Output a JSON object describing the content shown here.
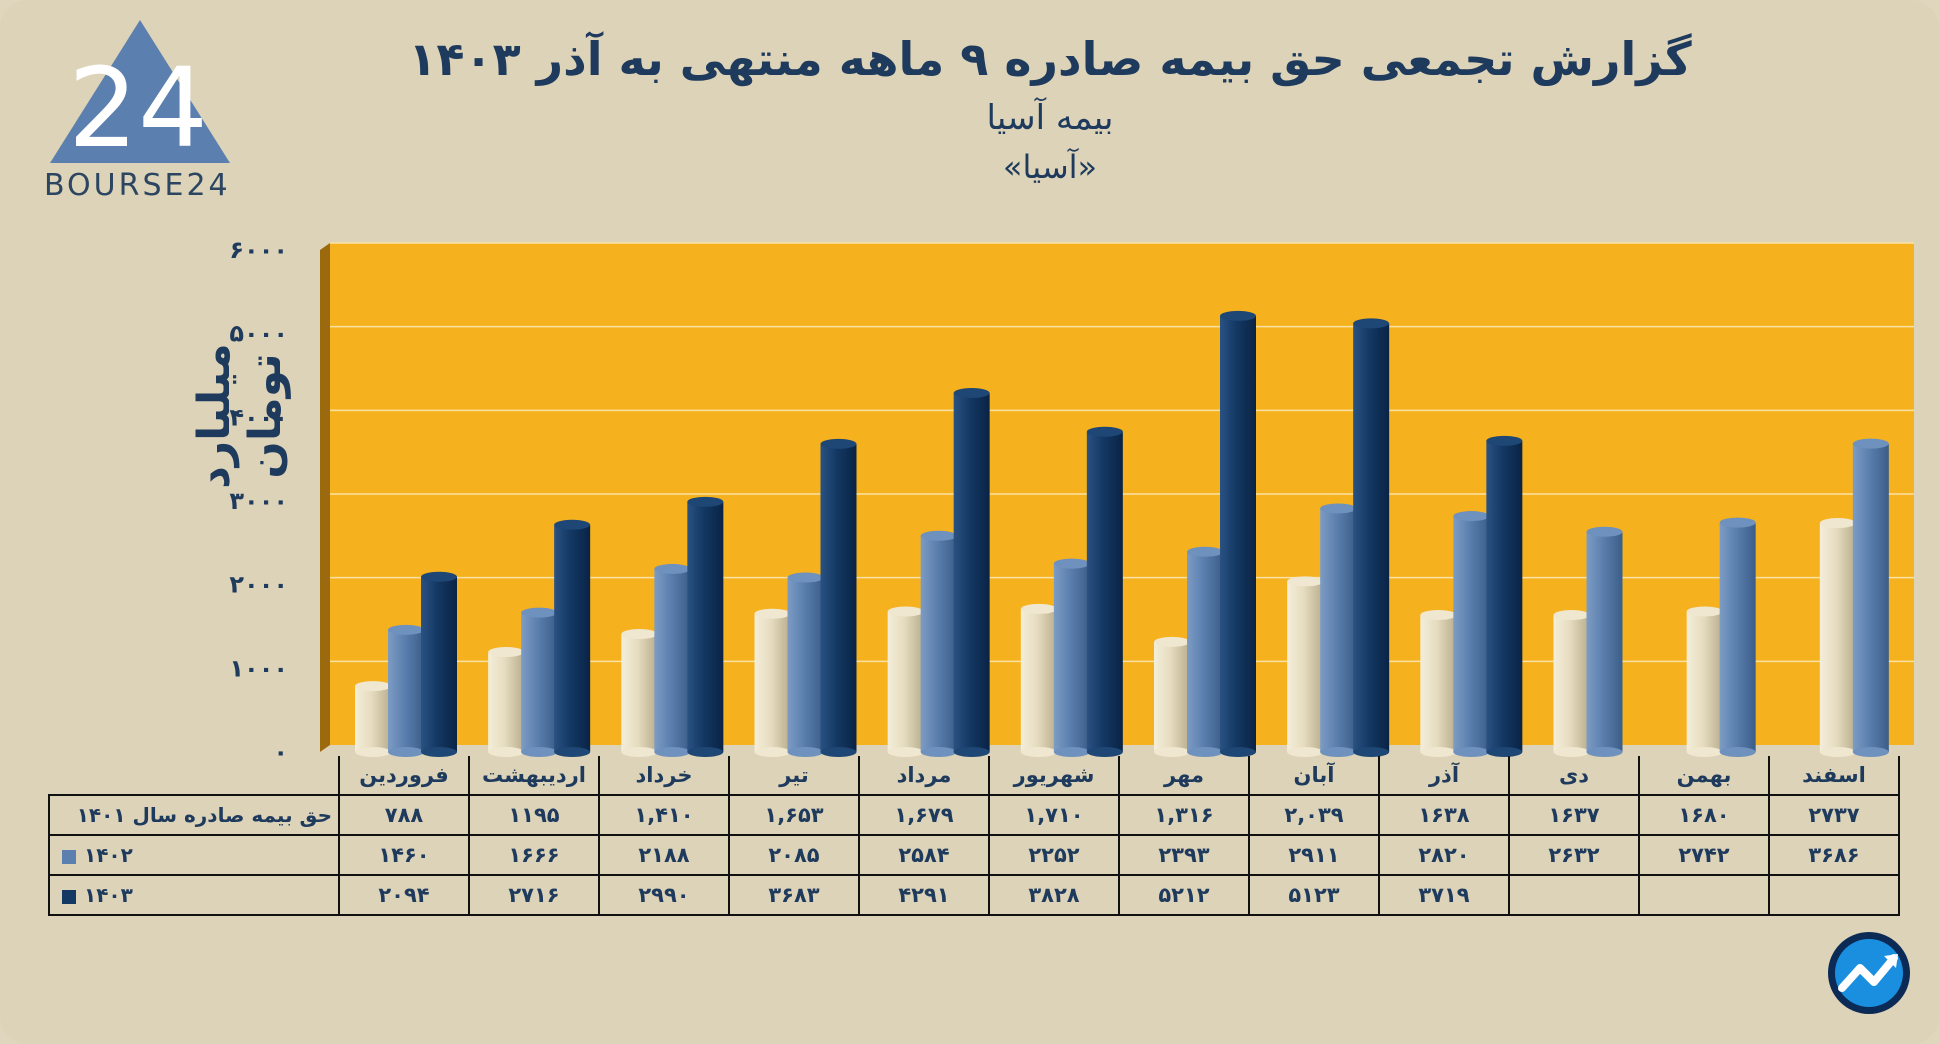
{
  "header": {
    "title": "گزارش تجمعی حق بیمه صادره ۹ ماهه منتهی به آذر ۱۴۰۳",
    "subtitle": "بیمه آسیا",
    "ticker": "«آسیا»",
    "logo_text": "BOURSE24",
    "logo_mark": "24"
  },
  "colors": {
    "background": "#ddd3b8",
    "plot_bg": "#f5b21e",
    "series_1401": "#e6dcc0",
    "series_1402": "#5b7fae",
    "series_1403": "#133863"
  },
  "icons": {
    "logo": "bourse24-triangle-logo",
    "badge": "trend-arrow-icon"
  },
  "chart_data": {
    "type": "bar",
    "ylabel": "میلیارد تومان",
    "xlabel": "",
    "ylim": [
      0,
      6000
    ],
    "yticks": [
      "۰",
      "۱۰۰۰",
      "۲۰۰۰",
      "۳۰۰۰",
      "۴۰۰۰",
      "۵۰۰۰",
      "۶۰۰۰"
    ],
    "grid": true,
    "categories": [
      "فروردین",
      "اردیبهشت",
      "خرداد",
      "تیر",
      "مرداد",
      "شهریور",
      "مهر",
      "آبان",
      "آذر",
      "دی",
      "بهمن",
      "اسفند"
    ],
    "series": [
      {
        "name": "۱۴۰۱",
        "row_label": "حق بیمه صادره سال ۱۴۰۱",
        "values": [
          788,
          1195,
          1410,
          1653,
          1679,
          1710,
          1316,
          2039,
          1638,
          1637,
          1680,
          2737
        ],
        "labels": [
          "۷۸۸",
          "۱۱۹۵",
          "۱,۴۱۰",
          "۱,۶۵۳",
          "۱,۶۷۹",
          "۱,۷۱۰",
          "۱,۳۱۶",
          "۲,۰۳۹",
          "۱۶۳۸",
          "۱۶۳۷",
          "۱۶۸۰",
          "۲۷۳۷"
        ]
      },
      {
        "name": "۱۴۰۲",
        "row_label": "۱۴۰۲",
        "values": [
          1460,
          1666,
          2188,
          2085,
          2584,
          2252,
          2393,
          2911,
          2820,
          2632,
          2742,
          3686
        ],
        "labels": [
          "۱۴۶۰",
          "۱۶۶۶",
          "۲۱۸۸",
          "۲۰۸۵",
          "۲۵۸۴",
          "۲۲۵۲",
          "۲۳۹۳",
          "۲۹۱۱",
          "۲۸۲۰",
          "۲۶۳۲",
          "۲۷۴۲",
          "۳۶۸۶"
        ]
      },
      {
        "name": "۱۴۰۳",
        "row_label": "۱۴۰۳",
        "values": [
          2094,
          2716,
          2990,
          3683,
          4291,
          3828,
          5212,
          5123,
          3719,
          null,
          null,
          null
        ],
        "labels": [
          "۲۰۹۴",
          "۲۷۱۶",
          "۲۹۹۰",
          "۳۶۸۳",
          "۴۲۹۱",
          "۳۸۲۸",
          "۵۲۱۲",
          "۵۱۲۳",
          "۳۷۱۹",
          "",
          "",
          ""
        ]
      }
    ]
  }
}
